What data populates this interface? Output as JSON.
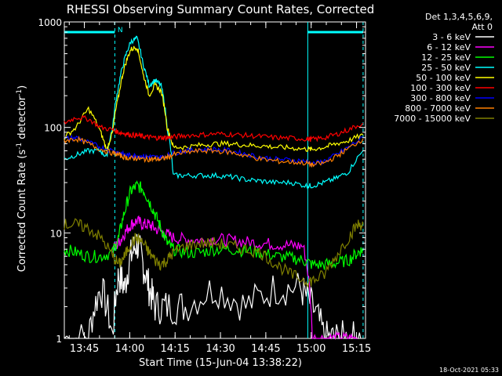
{
  "chart_data": {
    "type": "line",
    "title": "RHESSI Observing Summary Count Rates, Corrected",
    "xlabel": "Start Time (15-Jun-04 13:38:22)",
    "ylabel_parts": [
      "Corrected Count Rate (s",
      "-1",
      " detector",
      "-1",
      ")"
    ],
    "y_scale": "log",
    "ylim": [
      1,
      1000
    ],
    "y_ticks": [
      {
        "value": 1,
        "label": "1"
      },
      {
        "value": 10,
        "label": "10"
      },
      {
        "value": 100,
        "label": "100"
      },
      {
        "value": 1000,
        "label": "1000"
      }
    ],
    "x_unit": "minutes after 13:38:22",
    "xlim": [
      0,
      99.6
    ],
    "x_ticks": [
      {
        "value": 6.63,
        "label": "13:45"
      },
      {
        "value": 21.63,
        "label": "14:00"
      },
      {
        "value": 36.63,
        "label": "14:15"
      },
      {
        "value": 51.63,
        "label": "14:30"
      },
      {
        "value": 66.63,
        "label": "14:45"
      },
      {
        "value": 81.63,
        "label": "15:00"
      },
      {
        "value": 96.63,
        "label": "15:15"
      }
    ],
    "legend_header": [
      "Det 1,3,4,5,6,9,",
      "Att 0"
    ],
    "legend_placement": "right",
    "annotations": {
      "night_bars": [
        {
          "x0": 0,
          "x1": 16.7
        },
        {
          "x0": 80.5,
          "x1": 98.8
        }
      ],
      "night_marker_label": "N",
      "night_marker_x": 17.6,
      "dashed_lines_x": [
        16.7,
        98.8
      ],
      "solid_line_x": 80.5
    },
    "series": [
      {
        "name": "3 - 6 keV",
        "color": "#ffffff",
        "x": [
          0,
          8,
          12,
          16,
          18,
          20,
          22,
          24,
          26,
          28,
          30,
          34,
          40,
          50,
          60,
          70,
          78,
          82,
          86,
          90,
          94,
          98
        ],
        "y": [
          1,
          1,
          3,
          1,
          4,
          3,
          6,
          8,
          5,
          3,
          2,
          2,
          2,
          3,
          2,
          3,
          3,
          2,
          1,
          1,
          1,
          1
        ]
      },
      {
        "name": "6 - 12 keV",
        "color": "#ff00ff",
        "x": [
          16,
          18,
          20,
          22,
          24,
          26,
          28,
          30,
          33,
          36,
          40,
          45,
          50,
          55,
          60,
          65,
          70,
          75,
          79,
          82,
          86,
          90,
          94,
          97
        ],
        "y": [
          7,
          8,
          10,
          12,
          13,
          12,
          12,
          11,
          10,
          9,
          8.7,
          8.5,
          8.8,
          8.5,
          8.2,
          8,
          7.8,
          7.6,
          7.5,
          1,
          1,
          1,
          1,
          1
        ]
      },
      {
        "name": "12 - 25 keV",
        "color": "#00ff00",
        "x": [
          0,
          4,
          8,
          12,
          16,
          18,
          20,
          22,
          24,
          26,
          28,
          30,
          32,
          34,
          36,
          40,
          45,
          50,
          55,
          60,
          65,
          70,
          75,
          79,
          82,
          86,
          90,
          94,
          97,
          98.8
        ],
        "y": [
          7,
          6.5,
          6,
          6,
          6.5,
          9,
          16,
          25,
          28,
          26,
          20,
          15,
          11,
          8,
          7,
          6.5,
          6.5,
          7,
          7,
          6.8,
          6.5,
          6,
          5.8,
          5.5,
          5,
          5,
          5.2,
          5.5,
          6.5,
          7
        ]
      },
      {
        "name": "25 - 50 keV",
        "color": "#00ffff",
        "x": [
          0,
          4,
          8,
          12,
          14,
          16,
          18,
          20,
          22,
          24,
          26,
          28,
          30,
          32,
          34,
          36,
          40,
          45,
          50,
          55,
          60,
          65,
          70,
          75,
          80,
          82,
          86,
          90,
          94,
          98.8
        ],
        "y": [
          50,
          55,
          60,
          60,
          52,
          100,
          250,
          450,
          650,
          700,
          400,
          250,
          280,
          250,
          100,
          35,
          35,
          35,
          35,
          34,
          32,
          31,
          30,
          30,
          28,
          28,
          30,
          33,
          38,
          60
        ]
      },
      {
        "name": "50 - 100 keV",
        "color": "#ffff00",
        "x": [
          0,
          4,
          8,
          12,
          14,
          16,
          18,
          20,
          22,
          24,
          26,
          28,
          30,
          32,
          34,
          36,
          40,
          45,
          50,
          55,
          60,
          65,
          70,
          75,
          80,
          82,
          86,
          90,
          94,
          98.8
        ],
        "y": [
          80,
          100,
          150,
          90,
          60,
          90,
          200,
          380,
          550,
          580,
          320,
          200,
          250,
          220,
          100,
          65,
          65,
          68,
          70,
          70,
          68,
          67,
          65,
          64,
          62,
          62,
          65,
          70,
          75,
          85
        ]
      },
      {
        "name": "100 - 300 keV",
        "color": "#ff0000",
        "x": [
          0,
          4,
          8,
          12,
          16,
          18,
          20,
          22,
          24,
          26,
          28,
          30,
          32,
          34,
          36,
          40,
          45,
          50,
          55,
          60,
          65,
          70,
          75,
          80,
          82,
          86,
          90,
          94,
          98.8
        ],
        "y": [
          110,
          125,
          120,
          100,
          95,
          90,
          88,
          85,
          84,
          82,
          81,
          80,
          80,
          80,
          81,
          84,
          85,
          87,
          86,
          84,
          82,
          80,
          79,
          78,
          77,
          80,
          86,
          95,
          110
        ]
      },
      {
        "name": "300 - 800 keV",
        "color": "#0000ff",
        "x": [
          0,
          4,
          8,
          12,
          16,
          18,
          20,
          22,
          24,
          26,
          28,
          30,
          32,
          34,
          36,
          40,
          45,
          50,
          55,
          60,
          65,
          70,
          75,
          80,
          82,
          86,
          90,
          94,
          98.8
        ],
        "y": [
          78,
          80,
          72,
          65,
          60,
          58,
          55,
          54,
          54,
          53,
          53,
          52,
          52,
          54,
          57,
          60,
          62,
          62,
          60,
          56,
          52,
          50,
          49,
          48,
          45,
          48,
          55,
          65,
          80
        ]
      },
      {
        "name": "800 - 7000 keV",
        "color": "#ff8000",
        "x": [
          0,
          4,
          8,
          12,
          16,
          18,
          20,
          22,
          24,
          26,
          28,
          30,
          32,
          34,
          36,
          40,
          45,
          50,
          55,
          60,
          65,
          70,
          75,
          80,
          82,
          86,
          90,
          94,
          98.8
        ],
        "y": [
          75,
          78,
          70,
          62,
          57,
          55,
          52,
          51,
          51,
          50,
          50,
          50,
          50,
          52,
          55,
          58,
          60,
          60,
          58,
          54,
          50,
          48,
          47,
          46,
          44,
          46,
          53,
          63,
          78
        ]
      },
      {
        "name": "7000 - 15000 keV",
        "color": "#808000",
        "x": [
          0,
          4,
          8,
          12,
          16,
          18,
          20,
          22,
          24,
          26,
          28,
          30,
          32,
          34,
          36,
          40,
          45,
          50,
          55,
          60,
          65,
          70,
          75,
          80,
          82,
          86,
          90,
          94,
          97,
          98.8
        ],
        "y": [
          12,
          12,
          11,
          9,
          6,
          5,
          6,
          8,
          9,
          8,
          6.5,
          5.5,
          5,
          5.5,
          6.5,
          7.5,
          8,
          8,
          7.5,
          7,
          6.5,
          5,
          4,
          3.5,
          3.5,
          4,
          6,
          9,
          12,
          12
        ]
      }
    ]
  },
  "footer": {
    "date_stamp": "18-Oct-2021 05:33"
  }
}
